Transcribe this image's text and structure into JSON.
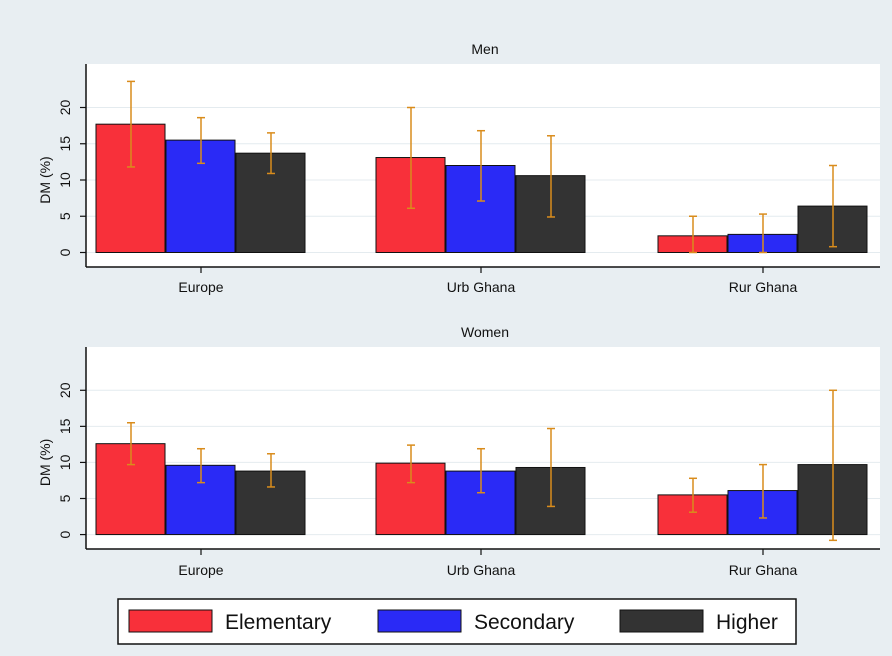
{
  "chart_data": [
    {
      "type": "bar",
      "title": "Men",
      "ylabel": "DM (%)",
      "ylim": [
        -2,
        26
      ],
      "yticks": [
        0,
        5,
        10,
        15,
        20
      ],
      "categories": [
        "Europe",
        "Urb Ghana",
        "Rur Ghana"
      ],
      "series": [
        {
          "name": "Elementary",
          "values": [
            17.7,
            13.1,
            2.3
          ],
          "ci_low": [
            11.8,
            6.1,
            0.0
          ],
          "ci_high": [
            23.6,
            20.0,
            5.0
          ]
        },
        {
          "name": "Secondary",
          "values": [
            15.5,
            12.0,
            2.5
          ],
          "ci_low": [
            12.3,
            7.1,
            0.0
          ],
          "ci_high": [
            18.6,
            16.8,
            5.3
          ]
        },
        {
          "name": "Higher",
          "values": [
            13.7,
            10.6,
            6.4
          ],
          "ci_low": [
            10.9,
            4.9,
            0.8
          ],
          "ci_high": [
            16.5,
            16.1,
            12.0
          ]
        }
      ],
      "grid": true
    },
    {
      "type": "bar",
      "title": "Women",
      "ylabel": "DM (%)",
      "ylim": [
        -2,
        26
      ],
      "yticks": [
        0,
        5,
        10,
        15,
        20
      ],
      "categories": [
        "Europe",
        "Urb Ghana",
        "Rur Ghana"
      ],
      "series": [
        {
          "name": "Elementary",
          "values": [
            12.6,
            9.9,
            5.5
          ],
          "ci_low": [
            9.7,
            7.2,
            3.1
          ],
          "ci_high": [
            15.5,
            12.4,
            7.8
          ]
        },
        {
          "name": "Secondary",
          "values": [
            9.6,
            8.8,
            6.1
          ],
          "ci_low": [
            7.2,
            5.8,
            2.3
          ],
          "ci_high": [
            11.9,
            11.9,
            9.7
          ]
        },
        {
          "name": "Higher",
          "values": [
            8.8,
            9.3,
            9.7
          ],
          "ci_low": [
            6.6,
            3.9,
            -0.8
          ],
          "ci_high": [
            11.2,
            14.7,
            20.0
          ]
        }
      ],
      "grid": true
    }
  ],
  "legend": {
    "position": "bottom",
    "items": [
      "Elementary",
      "Secondary",
      "Higher"
    ]
  },
  "colors": {
    "Elementary": "#f8303a",
    "Secondary": "#2a2af6",
    "Higher": "#333333",
    "errorbar": "#d98c1c",
    "grid": "#e4ebef",
    "plot_bg": "#ffffff",
    "page_bg": "#e8eef2"
  }
}
